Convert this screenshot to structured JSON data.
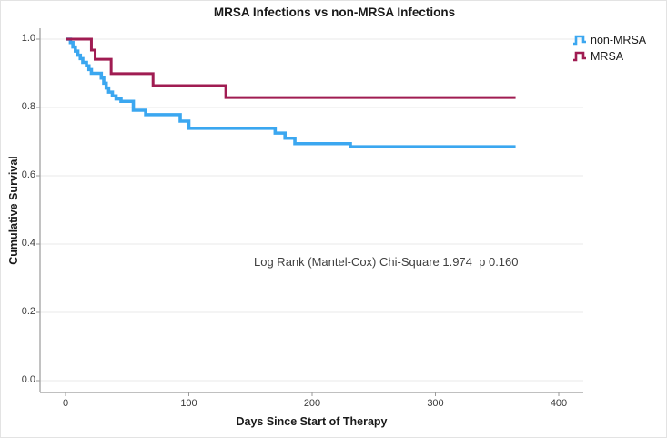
{
  "chart_data": {
    "type": "line",
    "step": true,
    "title": "MRSA Infections vs non-MRSA Infections",
    "xlabel": "Days Since Start of Therapy",
    "ylabel": "Cumulative Survival",
    "annotation": "Log Rank (Mantel-Cox) Chi-Square 1.974  p 0.160",
    "xlim": [
      -20,
      420
    ],
    "ylim": [
      0,
      1.07
    ],
    "grid": true,
    "legend_position": "top-right",
    "gridline_color": "#e8e8e8",
    "axis_color": "#9a9a9a",
    "x_ticks": [
      {
        "label": "0",
        "value": 0
      },
      {
        "label": "100",
        "value": 100
      },
      {
        "label": "200",
        "value": 200
      },
      {
        "label": "300",
        "value": 300
      },
      {
        "label": "400",
        "value": 400
      }
    ],
    "y_ticks": [
      {
        "label": "1.0",
        "value": 1.0
      },
      {
        "label": "0.8",
        "value": 0.8
      },
      {
        "label": "0.6",
        "value": 0.6
      },
      {
        "label": "0.4",
        "value": 0.4
      },
      {
        "label": "0.2",
        "value": 0.2
      },
      {
        "label": "0.0",
        "value": 0.0
      }
    ],
    "series": [
      {
        "name": "non-MRSA",
        "color": "#3ba7f0",
        "x": [
          0,
          4,
          6,
          8,
          10,
          12,
          14,
          17,
          19,
          21,
          29,
          31,
          33,
          35,
          38,
          41,
          45,
          55,
          65,
          93,
          100,
          170,
          178,
          186,
          231,
          365
        ],
        "y": [
          1.0,
          0.99,
          0.977,
          0.965,
          0.953,
          0.943,
          0.932,
          0.922,
          0.911,
          0.9,
          0.886,
          0.871,
          0.857,
          0.845,
          0.834,
          0.825,
          0.818,
          0.792,
          0.779,
          0.76,
          0.739,
          0.725,
          0.71,
          0.694,
          0.685,
          0.685
        ]
      },
      {
        "name": "MRSA",
        "color": "#a01c52",
        "x": [
          0,
          21,
          24,
          37,
          71,
          130,
          365
        ],
        "y": [
          1.0,
          0.968,
          0.941,
          0.899,
          0.864,
          0.829,
          0.829
        ]
      }
    ]
  }
}
